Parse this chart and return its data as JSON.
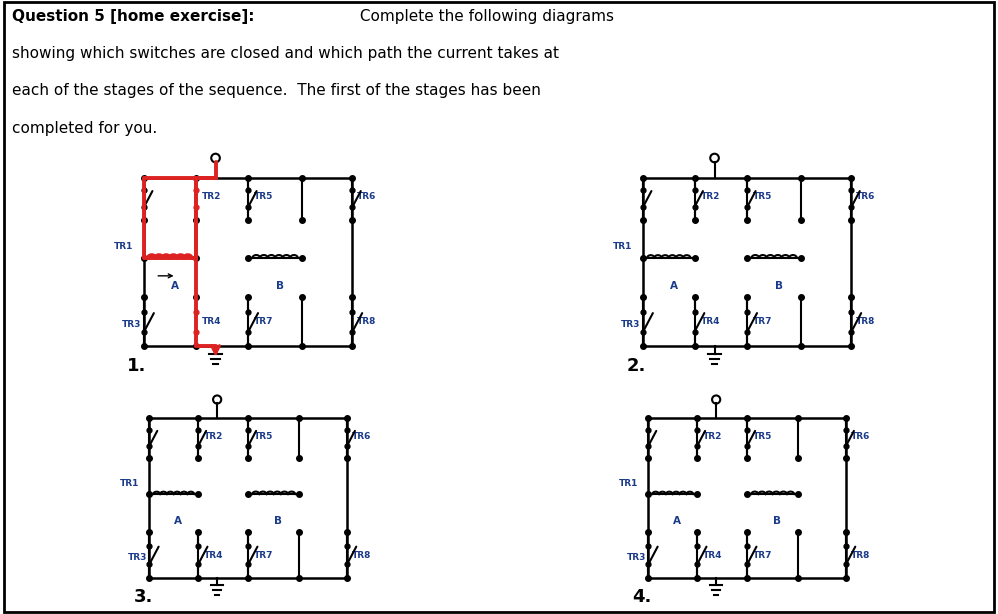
{
  "bg": "#ffffff",
  "cc": "#000000",
  "lc": "#1a3a8a",
  "rc": "#dd2222",
  "lw": 1.5,
  "rlw": 2.8,
  "panels": [
    {
      "label": "1.",
      "closed": [
        "TR2",
        "TR4"
      ],
      "red": true
    },
    {
      "label": "2.",
      "closed": [],
      "red": false
    },
    {
      "label": "3.",
      "closed": [],
      "red": false
    },
    {
      "label": "4.",
      "closed": [],
      "red": false
    }
  ],
  "title_bold": "Question 5 [home exercise]:",
  "title_rest": "  Complete the following diagrams\nshowing which switches are closed and which path the current takes at\neach of the stages of the sequence.  The first of the stages has been\ncompleted for you."
}
